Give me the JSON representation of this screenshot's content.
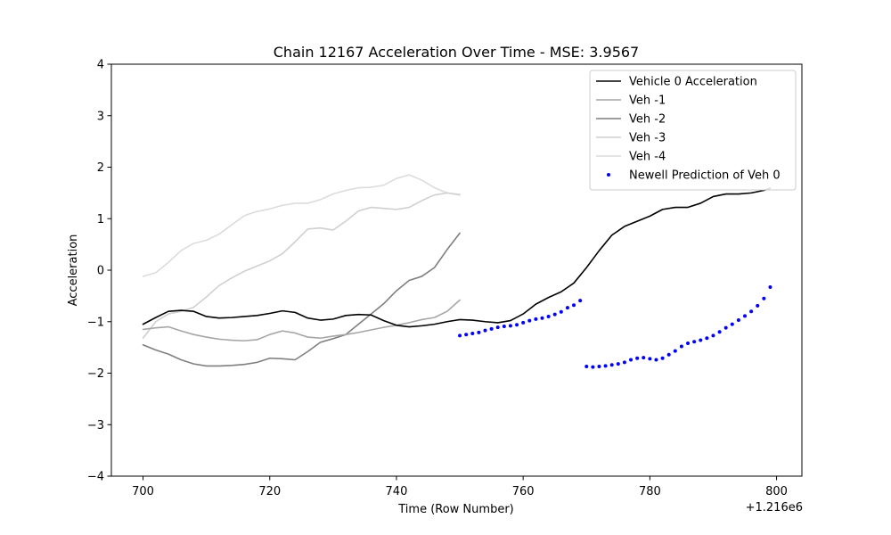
{
  "chart_data": {
    "type": "line",
    "title": "Chain 12167 Acceleration Over Time - MSE: 3.9567",
    "xlabel": "Time (Row Number)",
    "ylabel": "Acceleration",
    "x_offset_label": "+1.216e6",
    "xlim": [
      695,
      804
    ],
    "ylim": [
      -4,
      4
    ],
    "x_ticks": [
      700,
      720,
      740,
      760,
      780,
      800
    ],
    "x_tick_labels": [
      "700",
      "720",
      "740",
      "760",
      "780",
      "800"
    ],
    "y_ticks": [
      -4,
      -3,
      -2,
      -1,
      0,
      1,
      2,
      3,
      4
    ],
    "y_tick_labels": [
      "−4",
      "−3",
      "−2",
      "−1",
      "0",
      "1",
      "2",
      "3",
      "4"
    ],
    "legend_position": "upper-right",
    "series": [
      {
        "name": "Vehicle 0 Acceleration",
        "style": "line",
        "color": "#000000",
        "x": [
          700,
          702,
          704,
          706,
          708,
          710,
          712,
          714,
          716,
          718,
          720,
          722,
          724,
          726,
          728,
          730,
          732,
          734,
          736,
          738,
          740,
          742,
          744,
          746,
          748,
          750,
          752,
          754,
          756,
          758,
          760,
          762,
          764,
          766,
          768,
          770,
          772,
          774,
          776,
          778,
          780,
          782,
          784,
          786,
          788,
          790,
          792,
          794,
          796,
          798,
          799
        ],
        "values": [
          -1.05,
          -0.92,
          -0.8,
          -0.78,
          -0.8,
          -0.9,
          -0.93,
          -0.92,
          -0.9,
          -0.88,
          -0.84,
          -0.79,
          -0.82,
          -0.93,
          -0.97,
          -0.95,
          -0.88,
          -0.86,
          -0.87,
          -0.98,
          -1.07,
          -1.1,
          -1.08,
          -1.05,
          -1.0,
          -0.96,
          -0.97,
          -1.0,
          -1.02,
          -0.98,
          -0.85,
          -0.66,
          -0.53,
          -0.42,
          -0.25,
          0.05,
          0.38,
          0.68,
          0.85,
          0.95,
          1.05,
          1.18,
          1.22,
          1.22,
          1.3,
          1.43,
          1.48,
          1.48,
          1.5,
          1.55,
          1.59
        ]
      },
      {
        "name": "Veh -1",
        "style": "line",
        "color": "#a6a6a6",
        "x": [
          700,
          702,
          704,
          706,
          708,
          710,
          712,
          714,
          716,
          718,
          720,
          722,
          724,
          726,
          728,
          730,
          732,
          734,
          736,
          738,
          740,
          742,
          744,
          746,
          748,
          750
        ],
        "values": [
          -1.15,
          -1.12,
          -1.1,
          -1.18,
          -1.25,
          -1.3,
          -1.34,
          -1.36,
          -1.37,
          -1.35,
          -1.25,
          -1.18,
          -1.22,
          -1.3,
          -1.32,
          -1.28,
          -1.25,
          -1.21,
          -1.16,
          -1.11,
          -1.07,
          -1.02,
          -0.96,
          -0.92,
          -0.8,
          -0.58
        ]
      },
      {
        "name": "Veh -2",
        "style": "line",
        "color": "#7f7f7f",
        "x": [
          700,
          702,
          704,
          706,
          708,
          710,
          712,
          714,
          716,
          718,
          720,
          722,
          724,
          726,
          728,
          730,
          732,
          734,
          736,
          738,
          740,
          742,
          744,
          746,
          748,
          750
        ],
        "values": [
          -1.45,
          -1.55,
          -1.63,
          -1.74,
          -1.82,
          -1.86,
          -1.86,
          -1.85,
          -1.83,
          -1.79,
          -1.71,
          -1.72,
          -1.74,
          -1.58,
          -1.4,
          -1.33,
          -1.25,
          -1.05,
          -0.85,
          -0.65,
          -0.4,
          -0.2,
          -0.12,
          0.05,
          0.4,
          0.72
        ]
      },
      {
        "name": "Veh -3",
        "style": "line",
        "color": "#d0d0d0",
        "x": [
          700,
          702,
          704,
          706,
          708,
          710,
          712,
          714,
          716,
          718,
          720,
          722,
          724,
          726,
          728,
          730,
          732,
          734,
          736,
          738,
          740,
          742,
          744,
          746,
          748,
          750
        ],
        "values": [
          -1.32,
          -1.0,
          -0.85,
          -0.8,
          -0.72,
          -0.52,
          -0.3,
          -0.15,
          -0.02,
          0.08,
          0.18,
          0.32,
          0.55,
          0.8,
          0.82,
          0.78,
          0.95,
          1.15,
          1.22,
          1.2,
          1.18,
          1.22,
          1.35,
          1.46,
          1.5,
          1.47
        ]
      },
      {
        "name": "Veh -4",
        "style": "line",
        "color": "#dcdcdc",
        "x": [
          700,
          702,
          704,
          706,
          708,
          710,
          712,
          714,
          716,
          718,
          720,
          722,
          724,
          726,
          728,
          730,
          732,
          734,
          736,
          738,
          740,
          742,
          744,
          746,
          748,
          750
        ],
        "values": [
          -0.12,
          -0.05,
          0.15,
          0.38,
          0.52,
          0.58,
          0.7,
          0.88,
          1.06,
          1.14,
          1.19,
          1.26,
          1.3,
          1.3,
          1.37,
          1.48,
          1.55,
          1.6,
          1.61,
          1.65,
          1.78,
          1.85,
          1.75,
          1.6,
          1.5,
          1.46
        ]
      },
      {
        "name": "Newell Prediction of Veh 0",
        "style": "dots",
        "color": "#0000ff",
        "x": [
          750,
          751,
          752,
          753,
          754,
          755,
          756,
          757,
          758,
          759,
          760,
          761,
          762,
          763,
          764,
          765,
          766,
          767,
          768,
          769,
          770,
          771,
          772,
          773,
          774,
          775,
          776,
          777,
          778,
          779,
          780,
          781,
          782,
          783,
          784,
          785,
          786,
          787,
          788,
          789,
          790,
          791,
          792,
          793,
          794,
          795,
          796,
          797,
          798,
          799
        ],
        "values": [
          -1.27,
          -1.25,
          -1.23,
          -1.21,
          -1.17,
          -1.14,
          -1.11,
          -1.09,
          -1.08,
          -1.06,
          -1.02,
          -0.98,
          -0.95,
          -0.93,
          -0.9,
          -0.86,
          -0.81,
          -0.73,
          -0.68,
          -0.59,
          -1.87,
          -1.88,
          -1.87,
          -1.86,
          -1.84,
          -1.82,
          -1.79,
          -1.74,
          -1.71,
          -1.7,
          -1.72,
          -1.74,
          -1.71,
          -1.64,
          -1.57,
          -1.48,
          -1.42,
          -1.39,
          -1.36,
          -1.32,
          -1.27,
          -1.2,
          -1.12,
          -1.05,
          -0.97,
          -0.89,
          -0.8,
          -0.69,
          -0.55,
          -0.33
        ]
      }
    ]
  }
}
